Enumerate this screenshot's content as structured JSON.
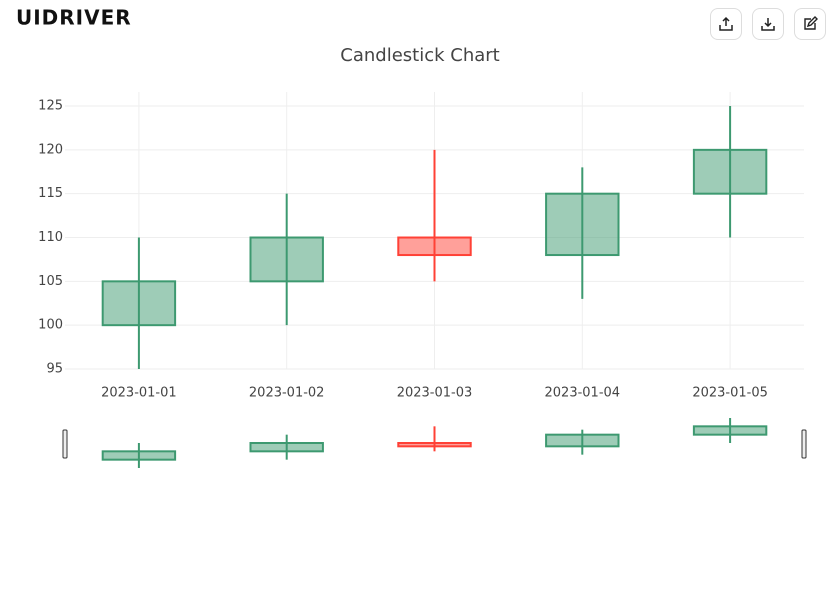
{
  "logo": "UIDRIVER",
  "chart_data": {
    "type": "candlestick",
    "title": "Candlestick Chart",
    "x": [
      "2023-01-01",
      "2023-01-02",
      "2023-01-03",
      "2023-01-04",
      "2023-01-05"
    ],
    "open": [
      100,
      105,
      110,
      108,
      115
    ],
    "high": [
      110,
      115,
      120,
      118,
      125
    ],
    "low": [
      95,
      100,
      105,
      103,
      110
    ],
    "close": [
      105,
      110,
      108,
      115,
      120
    ],
    "increasing_color": "#3d9970",
    "decreasing_color": "#ff4136",
    "ylim": [
      95,
      126.6
    ],
    "yticks": [
      95,
      100,
      105,
      110,
      115,
      120,
      125
    ],
    "grid": true,
    "rangeslider": true
  }
}
